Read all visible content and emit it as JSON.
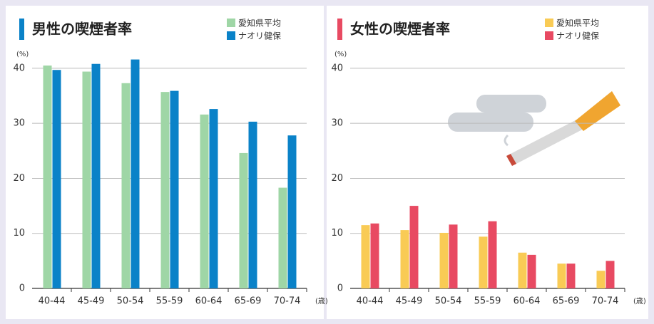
{
  "chart_data": [
    {
      "type": "bar",
      "title": "男性の喫煙者率",
      "title_color": "#0a82c8",
      "ylabel": "(%)",
      "xlabel": "(歳)",
      "categories": [
        "40-44",
        "45-49",
        "50-54",
        "55-59",
        "60-64",
        "65-69",
        "70-74"
      ],
      "series": [
        {
          "name": "愛知県平均",
          "color": "#9fd6a6",
          "values": [
            40.5,
            39.4,
            37.3,
            35.7,
            31.6,
            24.6,
            18.3
          ]
        },
        {
          "name": "ナオリ健保",
          "color": "#0a82c8",
          "values": [
            39.7,
            40.8,
            41.6,
            35.9,
            32.6,
            30.3,
            27.8
          ]
        }
      ],
      "ylim": [
        0,
        44
      ],
      "yticks": [
        0,
        10,
        20,
        30,
        40
      ],
      "grid": true
    },
    {
      "type": "bar",
      "title": "女性の喫煙者率",
      "title_color": "#e84a62",
      "ylabel": "(%)",
      "xlabel": "(歳)",
      "categories": [
        "40-44",
        "45-49",
        "50-54",
        "55-59",
        "60-64",
        "65-69",
        "70-74"
      ],
      "series": [
        {
          "name": "愛知県平均",
          "color": "#f9cb55",
          "values": [
            11.5,
            10.6,
            10.1,
            9.4,
            6.5,
            4.5,
            3.2
          ]
        },
        {
          "name": "ナオリ健保",
          "color": "#e84a62",
          "values": [
            11.8,
            15.0,
            11.6,
            12.2,
            6.1,
            4.5,
            5.0
          ]
        }
      ],
      "ylim": [
        0,
        44
      ],
      "yticks": [
        0,
        10,
        20,
        30,
        40
      ],
      "grid": true
    }
  ]
}
